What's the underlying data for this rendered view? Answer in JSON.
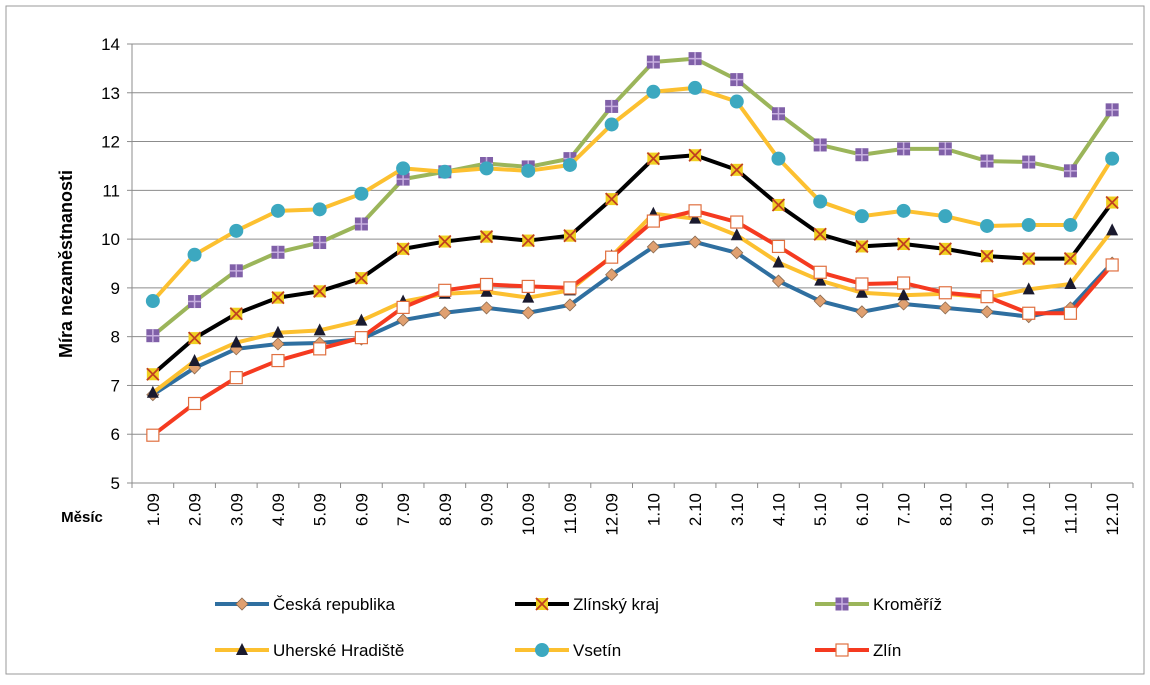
{
  "chart_data": {
    "type": "line",
    "y_label": "Míra nezaměstnanosti",
    "x_label": "Měsíc",
    "categories": [
      "1.09",
      "2.09",
      "3.09",
      "4.09",
      "5.09",
      "6.09",
      "7.09",
      "8.09",
      "9.09",
      "10.09",
      "11.09",
      "12.09",
      "1.10",
      "2.10",
      "3.10",
      "4.10",
      "5.10",
      "6.10",
      "7.10",
      "8.10",
      "9.10",
      "10.10",
      "11.10",
      "12.10"
    ],
    "ylim": [
      5,
      14
    ],
    "yticks": [
      5,
      6,
      7,
      8,
      9,
      10,
      11,
      12,
      13,
      14
    ],
    "grid": true,
    "series": [
      {
        "name": "Česká republika",
        "color": "#2f6fa0",
        "marker": "diamond",
        "marker_color": "#e0a070",
        "values": [
          6.81,
          7.36,
          7.75,
          7.85,
          7.87,
          7.95,
          8.34,
          8.49,
          8.59,
          8.49,
          8.65,
          9.27,
          9.84,
          9.94,
          9.72,
          9.14,
          8.73,
          8.51,
          8.67,
          8.59,
          8.51,
          8.41,
          8.59,
          9.51
        ]
      },
      {
        "name": "Zlínský kraj",
        "color": "#000000",
        "marker": "x",
        "marker_color": "#f0d020",
        "values": [
          7.23,
          7.97,
          8.47,
          8.8,
          8.93,
          9.2,
          9.8,
          9.95,
          10.05,
          9.97,
          10.07,
          10.82,
          11.65,
          11.72,
          11.42,
          10.7,
          10.1,
          9.85,
          9.9,
          9.8,
          9.65,
          9.6,
          9.6,
          10.75
        ]
      },
      {
        "name": "Kroměříž",
        "color": "#9bb55a",
        "marker": "square-plus",
        "marker_color": "#8060a8",
        "values": [
          8.02,
          8.72,
          9.35,
          9.73,
          9.93,
          10.31,
          11.23,
          11.38,
          11.55,
          11.48,
          11.65,
          12.72,
          13.63,
          13.7,
          13.27,
          12.57,
          11.93,
          11.73,
          11.85,
          11.85,
          11.6,
          11.58,
          11.4,
          12.65
        ]
      },
      {
        "name": "Uherské Hradiště",
        "color": "#fcc030",
        "marker": "triangle",
        "marker_color": "#1a1a2e",
        "values": [
          6.85,
          7.5,
          7.88,
          8.08,
          8.13,
          8.33,
          8.72,
          8.88,
          8.92,
          8.8,
          8.95,
          9.65,
          10.52,
          10.42,
          10.08,
          9.52,
          9.15,
          8.9,
          8.85,
          8.88,
          8.8,
          8.97,
          9.08,
          10.18
        ]
      },
      {
        "name": "Vsetín",
        "color": "#fcc030",
        "marker": "circle",
        "marker_color": "#3ca8c0",
        "values": [
          8.73,
          9.68,
          10.17,
          10.58,
          10.61,
          10.93,
          11.45,
          11.38,
          11.45,
          11.4,
          11.52,
          12.35,
          13.02,
          13.1,
          12.82,
          11.65,
          10.77,
          10.47,
          10.58,
          10.47,
          10.27,
          10.29,
          10.29,
          11.65
        ]
      },
      {
        "name": "Zlín",
        "color": "#f53a20",
        "marker": "square",
        "marker_color": "#ffffff",
        "values": [
          5.98,
          6.63,
          7.16,
          7.51,
          7.75,
          7.98,
          8.6,
          8.95,
          9.07,
          9.03,
          9.0,
          9.63,
          10.37,
          10.58,
          10.35,
          9.85,
          9.32,
          9.08,
          9.1,
          8.9,
          8.82,
          8.48,
          8.48,
          9.47
        ]
      }
    ]
  }
}
